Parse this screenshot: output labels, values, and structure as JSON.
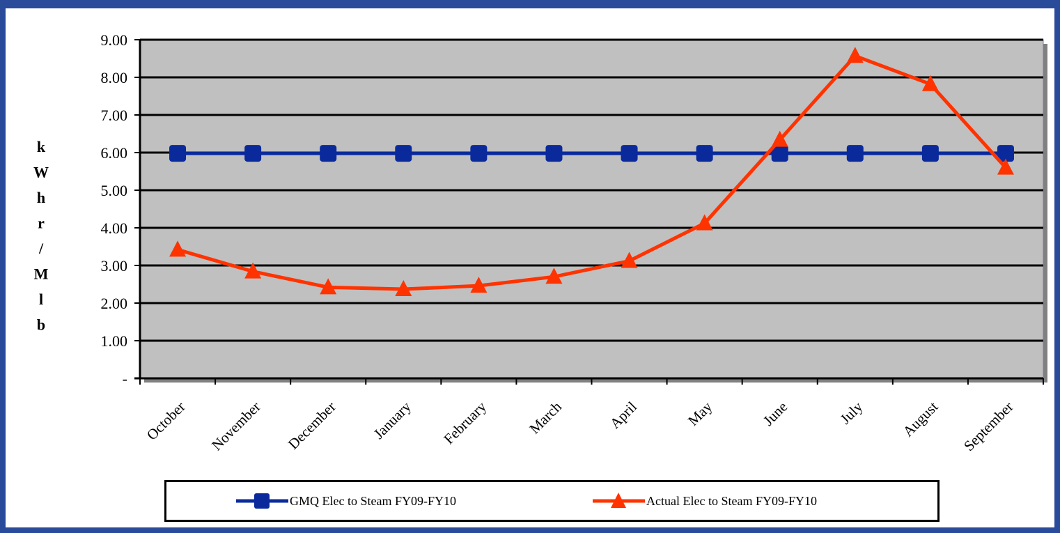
{
  "chart_data": {
    "type": "line",
    "categories": [
      "October",
      "November",
      "December",
      "January",
      "February",
      "March",
      "April",
      "May",
      "June",
      "July",
      "August",
      "September"
    ],
    "series": [
      {
        "name": "GMQ Elec to Steam FY09-FY10",
        "color": "#0a2a9c",
        "marker": "square",
        "values": [
          5.98,
          5.98,
          5.98,
          5.98,
          5.98,
          5.98,
          5.98,
          5.98,
          5.98,
          5.98,
          5.98,
          5.98
        ]
      },
      {
        "name": "Actual Elec to Steam FY09-FY10",
        "color": "#ff3300",
        "marker": "triangle",
        "values": [
          3.42,
          2.84,
          2.42,
          2.37,
          2.46,
          2.7,
          3.12,
          4.12,
          6.34,
          8.57,
          7.82,
          5.6
        ]
      }
    ],
    "ylabel": "kWhr/Mlb",
    "ylim": [
      0,
      9
    ],
    "yticks": [
      0,
      1,
      2,
      3,
      4,
      5,
      6,
      7,
      8,
      9
    ],
    "yticklabels": [
      "-",
      "1.00",
      "2.00",
      "3.00",
      "4.00",
      "5.00",
      "6.00",
      "7.00",
      "8.00",
      "9.00"
    ],
    "grid": true,
    "plot_background": "#c0c0c0",
    "legend_position": "bottom"
  }
}
